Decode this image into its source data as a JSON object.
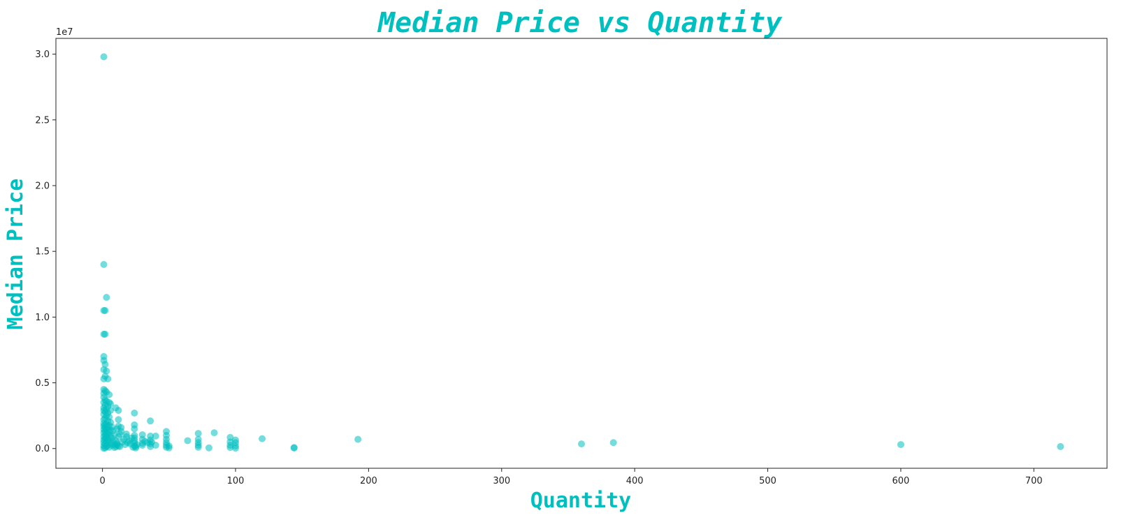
{
  "colors": {
    "accent": "#00BFBF",
    "axis": "#222222",
    "background": "#ffffff"
  },
  "chart_data": {
    "type": "scatter",
    "title": "Median Price vs Quantity",
    "xlabel": "Quantity",
    "ylabel": "Median Price",
    "y_offset_label": "1e7",
    "xlim": [
      -35,
      755
    ],
    "ylim": [
      -1500000,
      31200000
    ],
    "xticks": [
      0,
      100,
      200,
      300,
      400,
      500,
      600,
      700
    ],
    "xtick_labels": [
      "0",
      "100",
      "200",
      "300",
      "400",
      "500",
      "600",
      "700"
    ],
    "yticks": [
      0,
      5000000,
      10000000,
      15000000,
      20000000,
      25000000,
      30000000
    ],
    "ytick_labels": [
      "0.0",
      "0.5",
      "1.0",
      "1.5",
      "2.0",
      "2.5",
      "3.0"
    ],
    "grid": false,
    "legend": "none",
    "point_color": "#00BFBF",
    "point_alpha": 0.55,
    "points": [
      [
        1,
        29800000
      ],
      [
        1,
        14000000
      ],
      [
        3,
        11500000
      ],
      [
        1,
        10500000
      ],
      [
        2,
        10500000
      ],
      [
        1,
        8700000
      ],
      [
        2,
        8700000
      ],
      [
        1,
        7000000
      ],
      [
        1,
        6700000
      ],
      [
        2,
        6400000
      ],
      [
        1,
        6000000
      ],
      [
        3,
        5900000
      ],
      [
        2,
        5500000
      ],
      [
        4,
        5300000
      ],
      [
        1,
        5300000
      ],
      [
        1,
        4500000
      ],
      [
        2,
        4400000
      ],
      [
        3,
        4300000
      ],
      [
        1,
        4200000
      ],
      [
        5,
        4100000
      ],
      [
        1,
        3900000
      ],
      [
        2,
        3700000
      ],
      [
        3,
        3600000
      ],
      [
        1,
        3500000
      ],
      [
        5,
        3500000
      ],
      [
        6,
        3400000
      ],
      [
        2,
        3300000
      ],
      [
        4,
        3200000
      ],
      [
        1,
        3100000
      ],
      [
        3,
        3000000
      ],
      [
        1,
        2900000
      ],
      [
        6,
        2900000
      ],
      [
        2,
        2800000
      ],
      [
        4,
        2700000
      ],
      [
        1,
        2600000
      ],
      [
        3,
        2500000
      ],
      [
        5,
        2400000
      ],
      [
        2,
        2300000
      ],
      [
        1,
        2200000
      ],
      [
        4,
        2100000
      ],
      [
        6,
        2000000
      ],
      [
        1,
        1900000
      ],
      [
        3,
        1850000
      ],
      [
        2,
        1800000
      ],
      [
        5,
        1750000
      ],
      [
        1,
        1700000
      ],
      [
        7,
        1650000
      ],
      [
        4,
        1600000
      ],
      [
        2,
        1550000
      ],
      [
        3,
        1500000
      ],
      [
        1,
        1450000
      ],
      [
        6,
        1400000
      ],
      [
        8,
        1350000
      ],
      [
        2,
        1300000
      ],
      [
        5,
        1250000
      ],
      [
        1,
        1200000
      ],
      [
        3,
        1150000
      ],
      [
        4,
        1100000
      ],
      [
        9,
        1050000
      ],
      [
        2,
        1000000
      ],
      [
        6,
        950000
      ],
      [
        1,
        900000
      ],
      [
        3,
        850000
      ],
      [
        7,
        800000
      ],
      [
        2,
        750000
      ],
      [
        5,
        700000
      ],
      [
        1,
        650000
      ],
      [
        4,
        600000
      ],
      [
        8,
        550000
      ],
      [
        3,
        500000
      ],
      [
        1,
        450000
      ],
      [
        6,
        400000
      ],
      [
        2,
        350000
      ],
      [
        9,
        300000
      ],
      [
        4,
        250000
      ],
      [
        1,
        200000
      ],
      [
        3,
        150000
      ],
      [
        5,
        100000
      ],
      [
        2,
        50000
      ],
      [
        1,
        20000
      ],
      [
        7,
        250000
      ],
      [
        10,
        150000
      ],
      [
        11,
        300000
      ],
      [
        12,
        200000
      ],
      [
        10,
        600000
      ],
      [
        12,
        900000
      ],
      [
        13,
        1100000
      ],
      [
        14,
        1300000
      ],
      [
        11,
        1500000
      ],
      [
        12,
        1700000
      ],
      [
        10,
        3100000
      ],
      [
        12,
        2900000
      ],
      [
        12,
        2200000
      ],
      [
        14,
        1600000
      ],
      [
        11,
        400000
      ],
      [
        13,
        150000
      ],
      [
        9,
        80000
      ],
      [
        15,
        500000
      ],
      [
        16,
        700000
      ],
      [
        18,
        1100000
      ],
      [
        18,
        900000
      ],
      [
        20,
        600000
      ],
      [
        17,
        300000
      ],
      [
        19,
        450000
      ],
      [
        21,
        350000
      ],
      [
        22,
        800000
      ],
      [
        24,
        2700000
      ],
      [
        24,
        1800000
      ],
      [
        24,
        1500000
      ],
      [
        24,
        1000000
      ],
      [
        24,
        800000
      ],
      [
        24,
        600000
      ],
      [
        24,
        400000
      ],
      [
        24,
        200000
      ],
      [
        23,
        100000
      ],
      [
        25,
        50000
      ],
      [
        26,
        300000
      ],
      [
        25,
        150000
      ],
      [
        30,
        1050000
      ],
      [
        30,
        700000
      ],
      [
        30,
        400000
      ],
      [
        30,
        250000
      ],
      [
        32,
        550000
      ],
      [
        34,
        450000
      ],
      [
        36,
        2100000
      ],
      [
        36,
        950000
      ],
      [
        36,
        650000
      ],
      [
        36,
        350000
      ],
      [
        36,
        150000
      ],
      [
        37,
        500000
      ],
      [
        40,
        950000
      ],
      [
        40,
        250000
      ],
      [
        48,
        1300000
      ],
      [
        48,
        1000000
      ],
      [
        48,
        700000
      ],
      [
        48,
        450000
      ],
      [
        48,
        250000
      ],
      [
        48,
        100000
      ],
      [
        50,
        200000
      ],
      [
        50,
        50000
      ],
      [
        64,
        600000
      ],
      [
        72,
        1150000
      ],
      [
        72,
        700000
      ],
      [
        72,
        450000
      ],
      [
        72,
        250000
      ],
      [
        72,
        100000
      ],
      [
        80,
        50000
      ],
      [
        84,
        1200000
      ],
      [
        96,
        850000
      ],
      [
        96,
        500000
      ],
      [
        96,
        250000
      ],
      [
        96,
        80000
      ],
      [
        100,
        650000
      ],
      [
        100,
        450000
      ],
      [
        100,
        200000
      ],
      [
        100,
        30000
      ],
      [
        120,
        750000
      ],
      [
        144,
        80000
      ],
      [
        144,
        40000
      ],
      [
        192,
        700000
      ],
      [
        360,
        350000
      ],
      [
        384,
        450000
      ],
      [
        600,
        300000
      ],
      [
        720,
        150000
      ]
    ]
  }
}
